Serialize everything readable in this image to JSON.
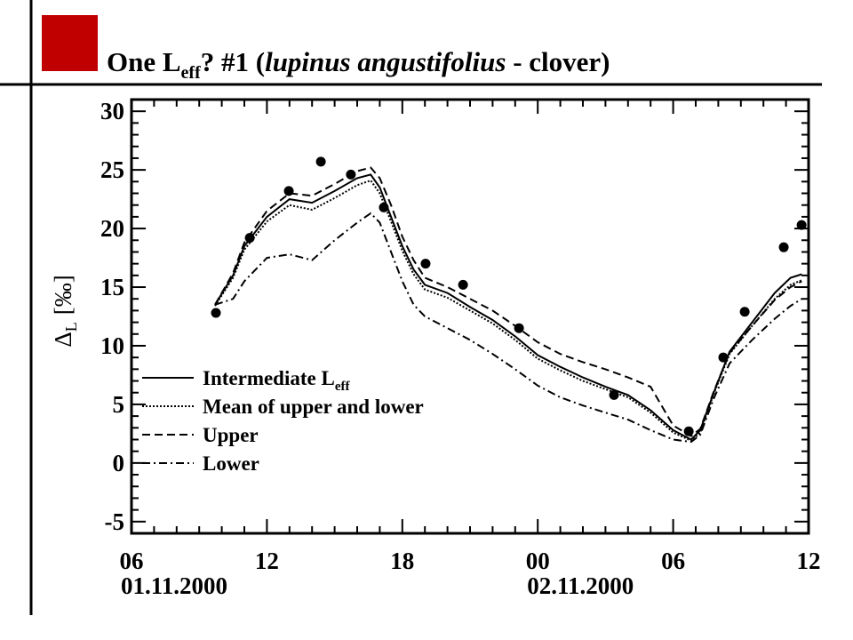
{
  "chart_data": {
    "type": "line",
    "title": {
      "parts": [
        {
          "text": "One L"
        },
        {
          "text": "eff",
          "sub": true
        },
        {
          "text": "?  #1 ("
        },
        {
          "text": "lupinus angustifolius",
          "italic": true
        },
        {
          "text": " - clover)"
        }
      ]
    },
    "ylabel": {
      "symbol": "Δ",
      "sub": "L",
      "unit": "[‰]"
    },
    "xlim": [
      0,
      30
    ],
    "xticks": [
      {
        "value": 0,
        "label": "06"
      },
      {
        "value": 6,
        "label": "12"
      },
      {
        "value": 12,
        "label": "18"
      },
      {
        "value": 18,
        "label": "00"
      },
      {
        "value": 24,
        "label": "06"
      },
      {
        "value": 30,
        "label": "12"
      }
    ],
    "x_date_labels": [
      {
        "value": 0,
        "label": "01.11.2000"
      },
      {
        "value": 18,
        "label": "02.11.2000"
      }
    ],
    "ylim": [
      -6,
      31
    ],
    "yticks": [
      -5,
      0,
      5,
      10,
      15,
      20,
      25,
      30
    ],
    "line_x": [
      3.7,
      4.5,
      5,
      6,
      7,
      8,
      9,
      10,
      10.6,
      11,
      11.5,
      12,
      12.5,
      13,
      14,
      15,
      16,
      17,
      18,
      19,
      20,
      21,
      22,
      23,
      24,
      24.8,
      25.2,
      25.8,
      26.5,
      27.5,
      28.5,
      29.2,
      29.7
    ],
    "series": [
      {
        "name": "Intermediate L",
        "name_sub": "eff",
        "color": "#000000",
        "dash": "solid",
        "values": [
          13.5,
          16,
          18.5,
          21,
          22.5,
          22.2,
          23.2,
          24.3,
          24.6,
          23.5,
          21,
          18.5,
          16.5,
          15.2,
          14.5,
          13.3,
          12.2,
          10.8,
          9.2,
          8.2,
          7.3,
          6.5,
          5.8,
          4.5,
          2.8,
          2.0,
          2.8,
          6,
          9.5,
          12,
          14.5,
          15.8,
          16.1
        ]
      },
      {
        "name": "Mean of upper and lower",
        "color": "#000000",
        "dash": "dotted",
        "values": [
          13.4,
          15.8,
          18.2,
          20.6,
          22.0,
          21.6,
          22.6,
          23.7,
          24.1,
          23.0,
          20.6,
          18.1,
          16.1,
          14.8,
          14.1,
          13.0,
          11.9,
          10.5,
          8.9,
          7.9,
          7.0,
          6.3,
          5.6,
          4.3,
          2.6,
          1.9,
          2.6,
          5.9,
          9.3,
          11.7,
          14.0,
          15.2,
          15.6
        ]
      },
      {
        "name": "Upper",
        "color": "#000000",
        "dash": "dashed",
        "values": [
          13.5,
          16.2,
          18.8,
          21.5,
          23.0,
          22.8,
          23.8,
          24.9,
          25.2,
          24.3,
          22.0,
          19.3,
          17.3,
          15.8,
          15.0,
          14.0,
          13.0,
          11.7,
          10.3,
          9.3,
          8.6,
          8.0,
          7.3,
          6.5,
          3.2,
          2.3,
          2.9,
          6.1,
          9.4,
          11.7,
          13.9,
          15.0,
          15.5
        ]
      },
      {
        "name": "Lower",
        "color": "#000000",
        "dash": "dashdot",
        "values": [
          13.5,
          14,
          15.5,
          17.5,
          17.8,
          17.3,
          19,
          20.5,
          21.3,
          20.5,
          18,
          15.5,
          13.5,
          12.5,
          11.5,
          10.5,
          9.3,
          8,
          6.6,
          5.6,
          4.9,
          4.3,
          3.7,
          2.8,
          2.0,
          1.8,
          2.4,
          5.5,
          8.5,
          10.5,
          12.3,
          13.4,
          14
        ]
      }
    ],
    "points": {
      "color": "#000000",
      "x": [
        3.74,
        5.24,
        6.97,
        8.39,
        9.72,
        11.18,
        13.03,
        14.69,
        17.17,
        21.38,
        24.69,
        26.22,
        27.17,
        28.9,
        29.69
      ],
      "values": [
        12.8,
        19.2,
        23.2,
        25.7,
        24.6,
        21.8,
        17.0,
        15.2,
        11.5,
        5.8,
        2.7,
        9.0,
        12.9,
        18.4,
        20.3
      ]
    }
  }
}
